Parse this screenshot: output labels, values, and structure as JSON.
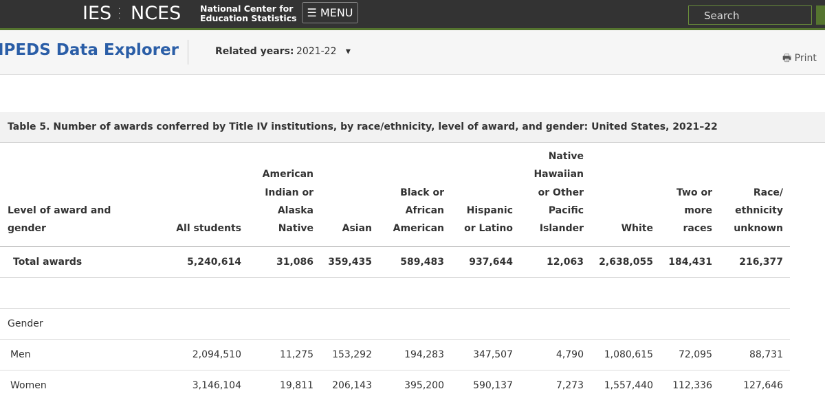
{
  "header": {
    "logo_left": "IES",
    "logo_right": "NCES",
    "org_line1": "National Center for",
    "org_line2": "Education Statistics",
    "menu": "MENU",
    "search_placeholder": "Search"
  },
  "subheader": {
    "title": "IPEDS Data Explorer",
    "related_years_label": "Related years:",
    "related_years_value": "2021-22",
    "print": "Print"
  },
  "table": {
    "title": "Table 5. Number of awards conferred by Title IV institutions, by race/ethnicity, level of award, and gender: United States, 2021–22",
    "columns": [
      [
        "Level of award and",
        "gender"
      ],
      [
        "All students"
      ],
      [
        "American",
        "Indian or",
        "Alaska",
        "Native"
      ],
      [
        "Asian"
      ],
      [
        "Black or",
        "African",
        "American"
      ],
      [
        "Hispanic",
        "or Latino"
      ],
      [
        "Native",
        "Hawaiian",
        "or Other",
        "Pacific",
        "Islander"
      ],
      [
        "White"
      ],
      [
        "Two or",
        "more",
        "races"
      ],
      [
        "Race/",
        "ethnicity",
        "unknown"
      ]
    ],
    "rows": [
      [
        "Total awards",
        "5,240,614",
        "31,086",
        "359,435",
        "589,483",
        "937,644",
        "12,063",
        "2,638,055",
        "184,431",
        "216,377"
      ],
      [],
      [
        "Gender"
      ],
      [
        "Men",
        "2,094,510",
        "11,275",
        "153,292",
        "194,283",
        "347,507",
        "4,790",
        "1,080,615",
        "72,095",
        "88,731"
      ],
      [
        "Women",
        "3,146,104",
        "19,811",
        "206,143",
        "395,200",
        "590,137",
        "7,273",
        "1,557,440",
        "112,336",
        "127,646"
      ]
    ]
  }
}
